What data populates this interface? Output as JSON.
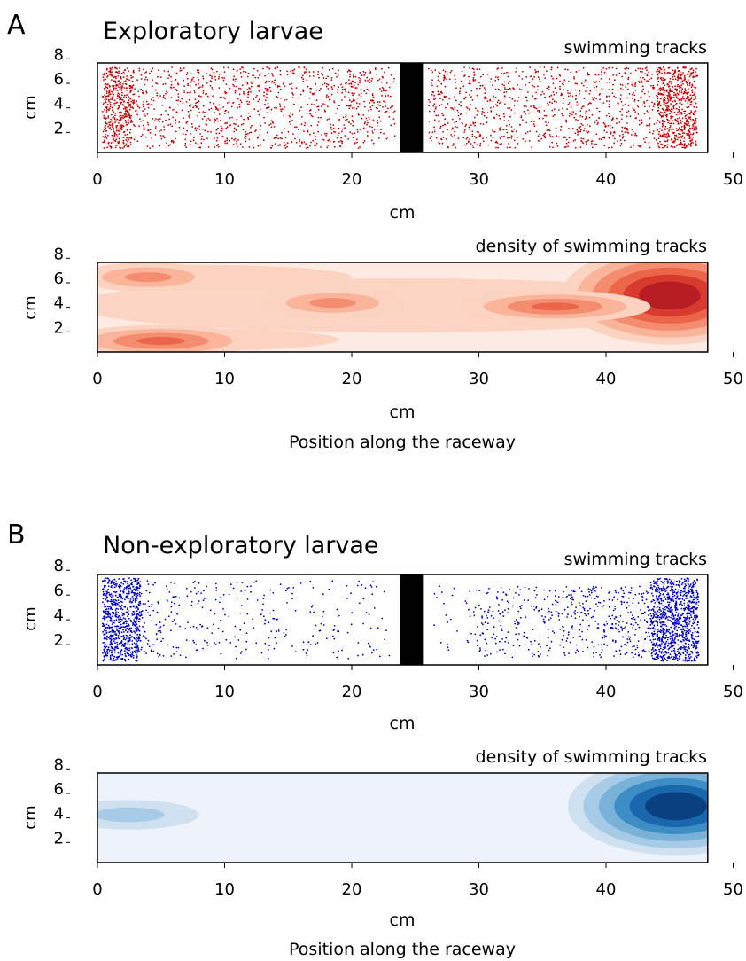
{
  "panels": [
    {
      "letter": "A",
      "title": "Exploratory larvae",
      "bottom_label": "Position along the raceway",
      "color": "#cc0000",
      "density_palette": [
        "#fdebe3",
        "#fcd2c0",
        "#f9b49a",
        "#f48d70",
        "#eb6649",
        "#d83a2f",
        "#b81d23"
      ],
      "charts": [
        {
          "type": "scatter",
          "subtitle": "swimming tracks",
          "xlabel": "cm",
          "ylabel": "cm",
          "xlim": [
            0,
            50
          ],
          "ylim": [
            0,
            8
          ],
          "xticks": [
            0,
            10,
            20,
            30,
            40,
            50
          ],
          "yticks": [
            2,
            4,
            6,
            8
          ],
          "tank_x": [
            0,
            48
          ],
          "tank_y": [
            0,
            7.3
          ],
          "barrier_x": [
            23.8,
            25.6
          ],
          "series": [
            {
              "values": []
            }
          ]
        },
        {
          "type": "heatmap",
          "subtitle": "density of swimming tracks",
          "xlabel": "cm",
          "ylabel": "cm",
          "xlim": [
            0,
            50
          ],
          "ylim": [
            0,
            8
          ],
          "xticks": [
            0,
            10,
            20,
            30,
            40,
            50
          ],
          "yticks": [
            2,
            4,
            6,
            8
          ],
          "tank_x": [
            0,
            48
          ],
          "tank_y": [
            0,
            7.3
          ],
          "peaks": [
            {
              "x": 45,
              "y": 4.6,
              "level": 7
            },
            {
              "x": 36,
              "y": 3.7,
              "level": 4
            },
            {
              "x": 5,
              "y": 0.9,
              "level": 4
            },
            {
              "x": 4,
              "y": 6.1,
              "level": 3
            },
            {
              "x": 18.5,
              "y": 4.0,
              "level": 3
            }
          ]
        }
      ]
    },
    {
      "letter": "B",
      "title": "Non-exploratory larvae",
      "bottom_label": "Position along the raceway",
      "color": "#0000cc",
      "density_palette": [
        "#edf2fb",
        "#cfe0f1",
        "#a7cbe6",
        "#79b1d8",
        "#3e8ec6",
        "#1b67ad",
        "#0a3f80"
      ],
      "charts": [
        {
          "type": "scatter",
          "subtitle": "swimming tracks",
          "xlabel": "cm",
          "ylabel": "cm",
          "xlim": [
            0,
            50
          ],
          "ylim": [
            0,
            8
          ],
          "xticks": [
            0,
            10,
            20,
            30,
            40,
            50
          ],
          "yticks": [
            2,
            4,
            6,
            8
          ],
          "tank_x": [
            0,
            48
          ],
          "tank_y": [
            0,
            7.3
          ],
          "barrier_x": [
            23.8,
            25.6
          ],
          "series": [
            {
              "values": []
            }
          ]
        },
        {
          "type": "heatmap",
          "subtitle": "density of swimming tracks",
          "xlabel": "cm",
          "ylabel": "cm",
          "xlim": [
            0,
            50
          ],
          "ylim": [
            0,
            8
          ],
          "xticks": [
            0,
            10,
            20,
            30,
            40,
            50
          ],
          "yticks": [
            2,
            4,
            6,
            8
          ],
          "tank_x": [
            0,
            48
          ],
          "tank_y": [
            0,
            7.3
          ],
          "peaks": [
            {
              "x": 45.5,
              "y": 4.6,
              "level": 7
            },
            {
              "x": 2.5,
              "y": 3.9,
              "level": 2
            }
          ]
        }
      ]
    }
  ]
}
